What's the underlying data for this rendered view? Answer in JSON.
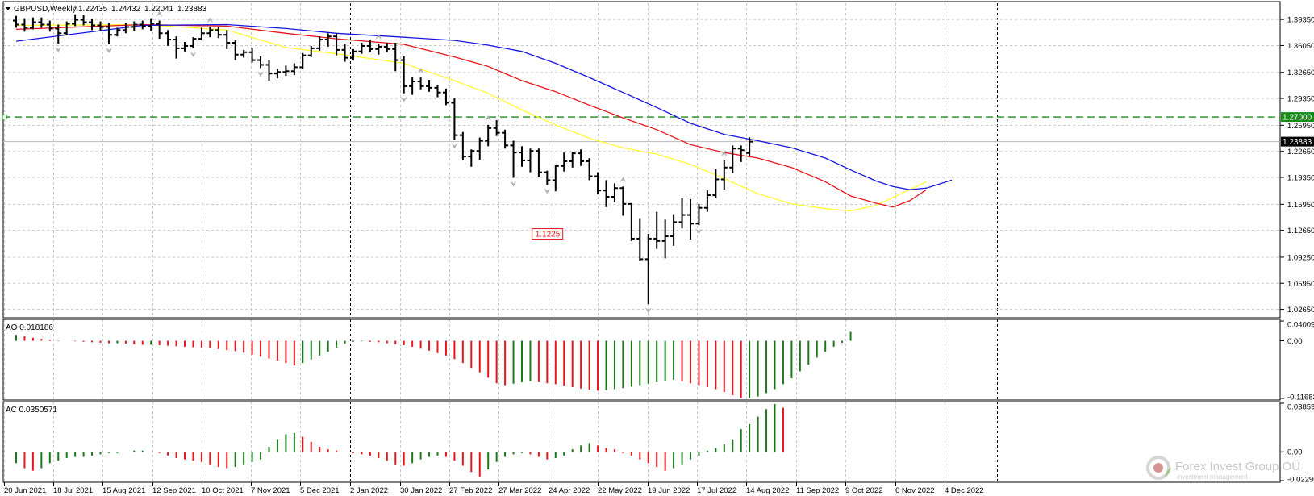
{
  "header": {
    "symbol": "GBPUSD,Weekly",
    "open": "1.22435",
    "high": "1.24432",
    "low": "1.22041",
    "close": "1.23883"
  },
  "indicators": {
    "ao_label": "AO 0.018186",
    "ac_label": "AC 0.0350571"
  },
  "watermark": {
    "brand": "Forex Invest Group OÜ",
    "tagline": "investment management"
  },
  "colors": {
    "ma_fast": "#ffff33",
    "ma_mid": "#e8151b",
    "ma_slow": "#1616e0",
    "level": "#1a8a1a",
    "up_bar": "#1a7a1a",
    "down_bar": "#e8151b",
    "price_bar": "#000000"
  },
  "chart_data": [
    {
      "type": "ohlc",
      "title": "GBPUSD,Weekly",
      "timeframe": "weekly",
      "x_tick_labels": [
        "20 Jun 2021",
        "18 Jul 2021",
        "15 Aug 2021",
        "12 Sep 2021",
        "10 Oct 2021",
        "7 Nov 2021",
        "5 Dec 2021",
        "2 Jan 2022",
        "30 Jan 2022",
        "27 Feb 2022",
        "27 Mar 2022",
        "24 Apr 2022",
        "22 May 2022",
        "19 Jun 2022",
        "17 Jul 2022",
        "14 Aug 2022",
        "11 Sep 2022",
        "9 Oct 2022",
        "6 Nov 2022",
        "4 Dec 2022"
      ],
      "y_tick_labels": [
        "1.39350",
        "1.36050",
        "1.32650",
        "1.29350",
        "1.25950",
        "1.22650",
        "1.19350",
        "1.15950",
        "1.12650",
        "1.09250",
        "1.05950",
        "1.02650"
      ],
      "ylim": [
        1.022,
        1.412
      ],
      "current_price": "1.23883",
      "level_line": {
        "value": 1.27,
        "label": "1.27000"
      },
      "annotation": {
        "value": 1.1225,
        "label": "1.1225",
        "bar_index": 66
      },
      "bars": [
        [
          1.392,
          1.398,
          1.383,
          1.387
        ],
        [
          1.387,
          1.395,
          1.378,
          1.383
        ],
        [
          1.383,
          1.396,
          1.381,
          1.39
        ],
        [
          1.39,
          1.396,
          1.383,
          1.387
        ],
        [
          1.387,
          1.392,
          1.378,
          1.382
        ],
        [
          1.382,
          1.387,
          1.363,
          1.376
        ],
        [
          1.376,
          1.391,
          1.374,
          1.388
        ],
        [
          1.388,
          1.4,
          1.385,
          1.393
        ],
        [
          1.393,
          1.399,
          1.386,
          1.39
        ],
        [
          1.39,
          1.394,
          1.38,
          1.386
        ],
        [
          1.386,
          1.391,
          1.379,
          1.384
        ],
        [
          1.384,
          1.389,
          1.362,
          1.374
        ],
        [
          1.374,
          1.383,
          1.372,
          1.38
        ],
        [
          1.38,
          1.389,
          1.376,
          1.384
        ],
        [
          1.384,
          1.391,
          1.379,
          1.387
        ],
        [
          1.387,
          1.392,
          1.381,
          1.385
        ],
        [
          1.385,
          1.395,
          1.379,
          1.388
        ],
        [
          1.388,
          1.392,
          1.369,
          1.376
        ],
        [
          1.376,
          1.38,
          1.36,
          1.368
        ],
        [
          1.368,
          1.372,
          1.344,
          1.357
        ],
        [
          1.357,
          1.365,
          1.353,
          1.36
        ],
        [
          1.36,
          1.371,
          1.357,
          1.369
        ],
        [
          1.369,
          1.383,
          1.367,
          1.376
        ],
        [
          1.376,
          1.384,
          1.371,
          1.38
        ],
        [
          1.38,
          1.384,
          1.37,
          1.374
        ],
        [
          1.374,
          1.38,
          1.356,
          1.364
        ],
        [
          1.364,
          1.367,
          1.342,
          1.349
        ],
        [
          1.349,
          1.355,
          1.345,
          1.352
        ],
        [
          1.352,
          1.358,
          1.339,
          1.342
        ],
        [
          1.342,
          1.347,
          1.332,
          1.336
        ],
        [
          1.336,
          1.342,
          1.316,
          1.325
        ],
        [
          1.325,
          1.331,
          1.319,
          1.327
        ],
        [
          1.327,
          1.335,
          1.322,
          1.328
        ],
        [
          1.328,
          1.338,
          1.323,
          1.333
        ],
        [
          1.333,
          1.351,
          1.331,
          1.348
        ],
        [
          1.348,
          1.36,
          1.346,
          1.357
        ],
        [
          1.357,
          1.372,
          1.354,
          1.368
        ],
        [
          1.368,
          1.376,
          1.359,
          1.372
        ],
        [
          1.372,
          1.376,
          1.348,
          1.355
        ],
        [
          1.355,
          1.362,
          1.34,
          1.345
        ],
        [
          1.345,
          1.356,
          1.342,
          1.353
        ],
        [
          1.353,
          1.364,
          1.35,
          1.36
        ],
        [
          1.36,
          1.367,
          1.352,
          1.356
        ],
        [
          1.356,
          1.363,
          1.349,
          1.359
        ],
        [
          1.359,
          1.364,
          1.352,
          1.356
        ],
        [
          1.356,
          1.364,
          1.328,
          1.342
        ],
        [
          1.342,
          1.347,
          1.3,
          1.309
        ],
        [
          1.309,
          1.32,
          1.298,
          1.315
        ],
        [
          1.315,
          1.32,
          1.305,
          1.309
        ],
        [
          1.309,
          1.317,
          1.302,
          1.307
        ],
        [
          1.307,
          1.31,
          1.295,
          1.301
        ],
        [
          1.301,
          1.306,
          1.285,
          1.288
        ],
        [
          1.288,
          1.294,
          1.241,
          1.247
        ],
        [
          1.247,
          1.251,
          1.215,
          1.22
        ],
        [
          1.22,
          1.229,
          1.207,
          1.227
        ],
        [
          1.227,
          1.244,
          1.216,
          1.24
        ],
        [
          1.24,
          1.26,
          1.233,
          1.256
        ],
        [
          1.256,
          1.266,
          1.246,
          1.25
        ],
        [
          1.25,
          1.254,
          1.23,
          1.234
        ],
        [
          1.234,
          1.24,
          1.193,
          1.225
        ],
        [
          1.225,
          1.233,
          1.207,
          1.215
        ],
        [
          1.215,
          1.23,
          1.2,
          1.227
        ],
        [
          1.227,
          1.23,
          1.194,
          1.2
        ],
        [
          1.2,
          1.202,
          1.184,
          1.19
        ],
        [
          1.19,
          1.21,
          1.176,
          1.208
        ],
        [
          1.208,
          1.225,
          1.201,
          1.214
        ],
        [
          1.214,
          1.226,
          1.206,
          1.224
        ],
        [
          1.224,
          1.229,
          1.208,
          1.214
        ],
        [
          1.214,
          1.218,
          1.19,
          1.195
        ],
        [
          1.195,
          1.2,
          1.172,
          1.177
        ],
        [
          1.177,
          1.19,
          1.156,
          1.169
        ],
        [
          1.169,
          1.186,
          1.162,
          1.18
        ],
        [
          1.18,
          1.182,
          1.145,
          1.16
        ],
        [
          1.16,
          1.161,
          1.113,
          1.116
        ],
        [
          1.116,
          1.142,
          1.088,
          1.09
        ],
        [
          1.09,
          1.122,
          1.033,
          1.116
        ],
        [
          1.116,
          1.15,
          1.103,
          1.113
        ],
        [
          1.113,
          1.14,
          1.091,
          1.119
        ],
        [
          1.119,
          1.147,
          1.107,
          1.137
        ],
        [
          1.137,
          1.167,
          1.129,
          1.146
        ],
        [
          1.146,
          1.166,
          1.115,
          1.135
        ],
        [
          1.135,
          1.16,
          1.133,
          1.155
        ],
        [
          1.155,
          1.177,
          1.15,
          1.171
        ],
        [
          1.171,
          1.204,
          1.167,
          1.191
        ],
        [
          1.191,
          1.215,
          1.178,
          1.206
        ],
        [
          1.206,
          1.234,
          1.199,
          1.23
        ],
        [
          1.23,
          1.234,
          1.213,
          1.228
        ],
        [
          1.2244,
          1.2443,
          1.2204,
          1.2388
        ]
      ],
      "moving_averages": [
        {
          "color": "#ffff33",
          "values": [
            [
              0,
              1.386
            ],
            [
              15,
              1.387
            ],
            [
              25,
              1.38
            ],
            [
              32,
              1.358
            ],
            [
              38,
              1.35
            ],
            [
              46,
              1.338
            ],
            [
              52,
              1.316
            ],
            [
              56,
              1.3
            ],
            [
              60,
              1.279
            ],
            [
              64,
              1.26
            ],
            [
              68,
              1.243
            ],
            [
              72,
              1.231
            ],
            [
              76,
              1.223
            ],
            [
              80,
              1.21
            ],
            [
              84,
              1.192
            ],
            [
              88,
              1.173
            ],
            [
              92,
              1.16
            ],
            [
              96,
              1.154
            ],
            [
              99,
              1.151
            ],
            [
              102,
              1.158
            ],
            [
              104,
              1.168
            ],
            [
              106,
              1.178
            ],
            [
              108,
              1.188
            ]
          ]
        },
        {
          "color": "#e8151b",
          "values": [
            [
              0,
              1.381
            ],
            [
              15,
              1.387
            ],
            [
              25,
              1.385
            ],
            [
              32,
              1.376
            ],
            [
              38,
              1.369
            ],
            [
              46,
              1.362
            ],
            [
              52,
              1.346
            ],
            [
              56,
              1.334
            ],
            [
              60,
              1.316
            ],
            [
              64,
              1.302
            ],
            [
              68,
              1.285
            ],
            [
              72,
              1.269
            ],
            [
              76,
              1.254
            ],
            [
              80,
              1.235
            ],
            [
              84,
              1.225
            ],
            [
              88,
              1.218
            ],
            [
              92,
              1.206
            ],
            [
              96,
              1.188
            ],
            [
              99,
              1.17
            ],
            [
              102,
              1.161
            ],
            [
              104,
              1.156
            ],
            [
              106,
              1.164
            ],
            [
              108,
              1.178
            ]
          ]
        },
        {
          "color": "#1616e0",
          "values": [
            [
              0,
              1.366
            ],
            [
              15,
              1.386
            ],
            [
              25,
              1.387
            ],
            [
              32,
              1.382
            ],
            [
              38,
              1.376
            ],
            [
              46,
              1.371
            ],
            [
              52,
              1.367
            ],
            [
              56,
              1.361
            ],
            [
              60,
              1.353
            ],
            [
              64,
              1.338
            ],
            [
              68,
              1.32
            ],
            [
              72,
              1.301
            ],
            [
              76,
              1.282
            ],
            [
              80,
              1.262
            ],
            [
              84,
              1.248
            ],
            [
              88,
              1.24
            ],
            [
              92,
              1.231
            ],
            [
              96,
              1.218
            ],
            [
              99,
              1.203
            ],
            [
              102,
              1.189
            ],
            [
              104,
              1.182
            ],
            [
              106,
              1.178
            ],
            [
              108,
              1.18
            ],
            [
              111,
              1.19
            ]
          ]
        }
      ]
    },
    {
      "type": "histogram",
      "title": "AO 0.018186",
      "y_tick_labels": [
        "0.040093",
        "0.00",
        "-0.116833"
      ],
      "ylim": [
        -0.116833,
        0.040093
      ],
      "values": [
        0.012,
        0.009,
        0.006,
        0.004,
        0.002,
        0.001,
        0.0,
        -0.001,
        -0.002,
        -0.003,
        -0.004,
        -0.005,
        -0.005,
        -0.006,
        -0.007,
        -0.008,
        -0.008,
        -0.009,
        -0.01,
        -0.011,
        -0.012,
        -0.013,
        -0.014,
        -0.015,
        -0.017,
        -0.019,
        -0.021,
        -0.024,
        -0.028,
        -0.032,
        -0.036,
        -0.04,
        -0.045,
        -0.05,
        -0.045,
        -0.038,
        -0.03,
        -0.022,
        -0.014,
        -0.006,
        -0.002,
        -0.001,
        -0.002,
        -0.003,
        -0.005,
        -0.007,
        -0.009,
        -0.012,
        -0.016,
        -0.02,
        -0.025,
        -0.03,
        -0.037,
        -0.045,
        -0.055,
        -0.064,
        -0.075,
        -0.086,
        -0.09,
        -0.087,
        -0.084,
        -0.082,
        -0.084,
        -0.086,
        -0.088,
        -0.091,
        -0.094,
        -0.097,
        -0.099,
        -0.101,
        -0.1,
        -0.098,
        -0.096,
        -0.093,
        -0.09,
        -0.087,
        -0.084,
        -0.081,
        -0.079,
        -0.082,
        -0.086,
        -0.09,
        -0.094,
        -0.098,
        -0.104,
        -0.11,
        -0.116,
        -0.116,
        -0.113,
        -0.106,
        -0.098,
        -0.088,
        -0.076,
        -0.062,
        -0.048,
        -0.034,
        -0.022,
        -0.012,
        -0.004,
        0.018
      ]
    },
    {
      "type": "histogram",
      "title": "AC 0.0350571",
      "y_tick_labels": [
        "0.0385983",
        "0.00",
        "-0.022909"
      ],
      "ylim": [
        -0.022909,
        0.0385983
      ],
      "values": [
        -0.009,
        -0.013,
        -0.015,
        -0.013,
        -0.009,
        -0.007,
        -0.005,
        -0.004,
        -0.004,
        -0.003,
        -0.002,
        -0.001,
        -0.001,
        0.0,
        0.001,
        0.001,
        0.0,
        -0.001,
        -0.003,
        -0.005,
        -0.006,
        -0.007,
        -0.008,
        -0.01,
        -0.012,
        -0.013,
        -0.012,
        -0.01,
        -0.008,
        -0.006,
        0.004,
        0.01,
        0.014,
        0.015,
        0.012,
        0.008,
        0.004,
        0.002,
        0.001,
        0.0,
        -0.001,
        -0.002,
        -0.003,
        -0.005,
        -0.007,
        -0.01,
        -0.011,
        -0.009,
        -0.006,
        -0.004,
        -0.003,
        -0.004,
        -0.007,
        -0.011,
        -0.016,
        -0.02,
        -0.014,
        -0.008,
        -0.004,
        -0.002,
        -0.001,
        -0.002,
        -0.004,
        -0.006,
        -0.005,
        -0.003,
        0.002,
        0.005,
        0.007,
        0.005,
        0.003,
        0.002,
        -0.001,
        -0.003,
        -0.006,
        -0.009,
        -0.012,
        -0.015,
        -0.013,
        -0.01,
        -0.006,
        -0.003,
        0.001,
        0.003,
        0.006,
        0.01,
        0.018,
        0.022,
        0.028,
        0.034,
        0.038,
        0.0350571
      ]
    }
  ]
}
